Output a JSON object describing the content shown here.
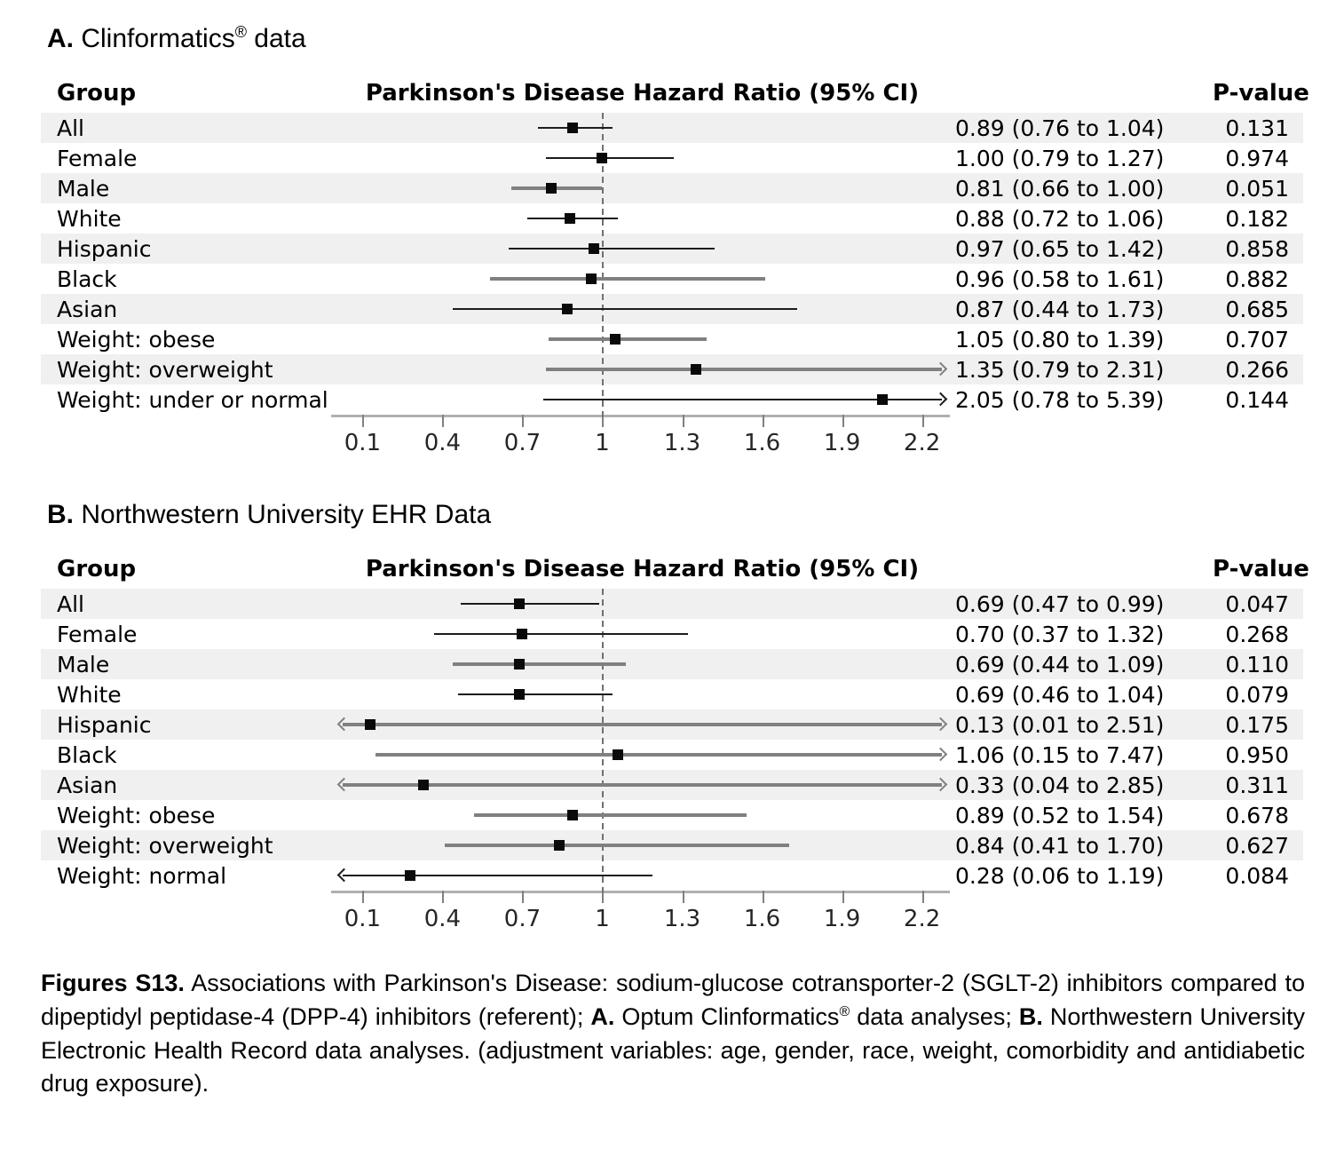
{
  "chart_data": [
    {
      "type": "scatter",
      "subtype": "forest-plot",
      "panel_label": "A.",
      "title": "Clinformatics® data",
      "title_segments": [
        {
          "text": "A.",
          "bold": true
        },
        {
          "text": " Clinformatics",
          "bold": false
        },
        {
          "text": "®",
          "bold": false,
          "sup": true
        },
        {
          "text": " data",
          "bold": false
        }
      ],
      "group_header": "Group",
      "plot_header": "Parkinson's Disease Hazard Ratio (95% CI)",
      "pvalue_header": "P-value",
      "xlim": [
        0.1,
        2.2
      ],
      "reference_line": 1,
      "x_tick_labels": [
        "0.1",
        "0.4",
        "0.7",
        "1",
        "1.3",
        "1.6",
        "1.9",
        "2.2"
      ],
      "rows": [
        {
          "group": "All",
          "hr": 0.89,
          "ci_low": 0.76,
          "ci_high": 1.04,
          "ci_text": "0.89 (0.76 to 1.04)",
          "pvalue": "0.131",
          "line_weight": "thin"
        },
        {
          "group": "Female",
          "hr": 1.0,
          "ci_low": 0.79,
          "ci_high": 1.27,
          "ci_text": "1.00 (0.79 to 1.27)",
          "pvalue": "0.974",
          "line_weight": "thin"
        },
        {
          "group": "Male",
          "hr": 0.81,
          "ci_low": 0.66,
          "ci_high": 1.0,
          "ci_text": "0.81 (0.66 to 1.00)",
          "pvalue": "0.051",
          "line_weight": "thick"
        },
        {
          "group": "White",
          "hr": 0.88,
          "ci_low": 0.72,
          "ci_high": 1.06,
          "ci_text": "0.88 (0.72 to 1.06)",
          "pvalue": "0.182",
          "line_weight": "thin"
        },
        {
          "group": "Hispanic",
          "hr": 0.97,
          "ci_low": 0.65,
          "ci_high": 1.42,
          "ci_text": "0.97 (0.65 to 1.42)",
          "pvalue": "0.858",
          "line_weight": "thin"
        },
        {
          "group": "Black",
          "hr": 0.96,
          "ci_low": 0.58,
          "ci_high": 1.61,
          "ci_text": "0.96 (0.58 to 1.61)",
          "pvalue": "0.882",
          "line_weight": "thick"
        },
        {
          "group": "Asian",
          "hr": 0.87,
          "ci_low": 0.44,
          "ci_high": 1.73,
          "ci_text": "0.87 (0.44 to 1.73)",
          "pvalue": "0.685",
          "line_weight": "thin"
        },
        {
          "group": "Weight: obese",
          "hr": 1.05,
          "ci_low": 0.8,
          "ci_high": 1.39,
          "ci_text": "1.05 (0.80 to 1.39)",
          "pvalue": "0.707",
          "line_weight": "thick"
        },
        {
          "group": "Weight: overweight",
          "hr": 1.35,
          "ci_low": 0.79,
          "ci_high": 2.31,
          "ci_text": "1.35 (0.79 to 2.31)",
          "pvalue": "0.266",
          "line_weight": "thick"
        },
        {
          "group": "Weight: under or normal",
          "hr": 2.05,
          "ci_low": 0.78,
          "ci_high": 5.39,
          "ci_text": "2.05 (0.78 to 5.39)",
          "pvalue": "0.144",
          "line_weight": "thin"
        }
      ]
    },
    {
      "type": "scatter",
      "subtype": "forest-plot",
      "panel_label": "B.",
      "title": "Northwestern University EHR Data",
      "title_segments": [
        {
          "text": "B.",
          "bold": true
        },
        {
          "text": " Northwestern University EHR Data",
          "bold": false
        }
      ],
      "group_header": "Group",
      "plot_header": "Parkinson's Disease Hazard Ratio (95% CI)",
      "pvalue_header": "P-value",
      "xlim": [
        0.1,
        2.2
      ],
      "reference_line": 1,
      "x_tick_labels": [
        "0.1",
        "0.4",
        "0.7",
        "1",
        "1.3",
        "1.6",
        "1.9",
        "2.2"
      ],
      "rows": [
        {
          "group": "All",
          "hr": 0.69,
          "ci_low": 0.47,
          "ci_high": 0.99,
          "ci_text": "0.69 (0.47 to 0.99)",
          "pvalue": "0.047",
          "line_weight": "thin"
        },
        {
          "group": "Female",
          "hr": 0.7,
          "ci_low": 0.37,
          "ci_high": 1.32,
          "ci_text": "0.70 (0.37 to 1.32)",
          "pvalue": "0.268",
          "line_weight": "thin"
        },
        {
          "group": "Male",
          "hr": 0.69,
          "ci_low": 0.44,
          "ci_high": 1.09,
          "ci_text": "0.69 (0.44 to 1.09)",
          "pvalue": "0.110",
          "line_weight": "thick"
        },
        {
          "group": "White",
          "hr": 0.69,
          "ci_low": 0.46,
          "ci_high": 1.04,
          "ci_text": "0.69 (0.46 to 1.04)",
          "pvalue": "0.079",
          "line_weight": "thin"
        },
        {
          "group": "Hispanic",
          "hr": 0.13,
          "ci_low": 0.01,
          "ci_high": 2.51,
          "ci_text": "0.13 (0.01 to 2.51)",
          "pvalue": "0.175",
          "line_weight": "thick"
        },
        {
          "group": "Black",
          "hr": 1.06,
          "ci_low": 0.15,
          "ci_high": 7.47,
          "ci_text": "1.06 (0.15 to 7.47)",
          "pvalue": "0.950",
          "line_weight": "thick"
        },
        {
          "group": "Asian",
          "hr": 0.33,
          "ci_low": 0.04,
          "ci_high": 2.85,
          "ci_text": "0.33 (0.04 to 2.85)",
          "pvalue": "0.311",
          "line_weight": "thick"
        },
        {
          "group": "Weight: obese",
          "hr": 0.89,
          "ci_low": 0.52,
          "ci_high": 1.54,
          "ci_text": "0.89 (0.52 to 1.54)",
          "pvalue": "0.678",
          "line_weight": "thick"
        },
        {
          "group": "Weight: overweight",
          "hr": 0.84,
          "ci_low": 0.41,
          "ci_high": 1.7,
          "ci_text": "0.84 (0.41 to 1.70)",
          "pvalue": "0.627",
          "line_weight": "thick"
        },
        {
          "group": "Weight: normal",
          "hr": 0.28,
          "ci_low": 0.06,
          "ci_high": 1.19,
          "ci_text": "0.28 (0.06 to 1.19)",
          "pvalue": "0.084",
          "line_weight": "thin"
        }
      ]
    }
  ],
  "caption": {
    "segments": [
      {
        "text": "Figures S13.",
        "bold": true
      },
      {
        "text": " Associations with Parkinson's Disease: sodium-glucose cotransporter-2 (SGLT-2) inhibitors compared to dipeptidyl peptidase-4 (DPP-4) inhibitors (referent); ",
        "bold": false
      },
      {
        "text": "A.",
        "bold": true
      },
      {
        "text": " Optum Clinformatics",
        "bold": false
      },
      {
        "text": "®",
        "bold": false,
        "sup": true
      },
      {
        "text": " data analyses; ",
        "bold": false
      },
      {
        "text": "B.",
        "bold": true
      },
      {
        "text": " Northwestern University Electronic Health Record data analyses. (adjustment variables: age, gender, race, weight, comorbidity and antidiabetic drug exposure).",
        "bold": false
      }
    ]
  }
}
